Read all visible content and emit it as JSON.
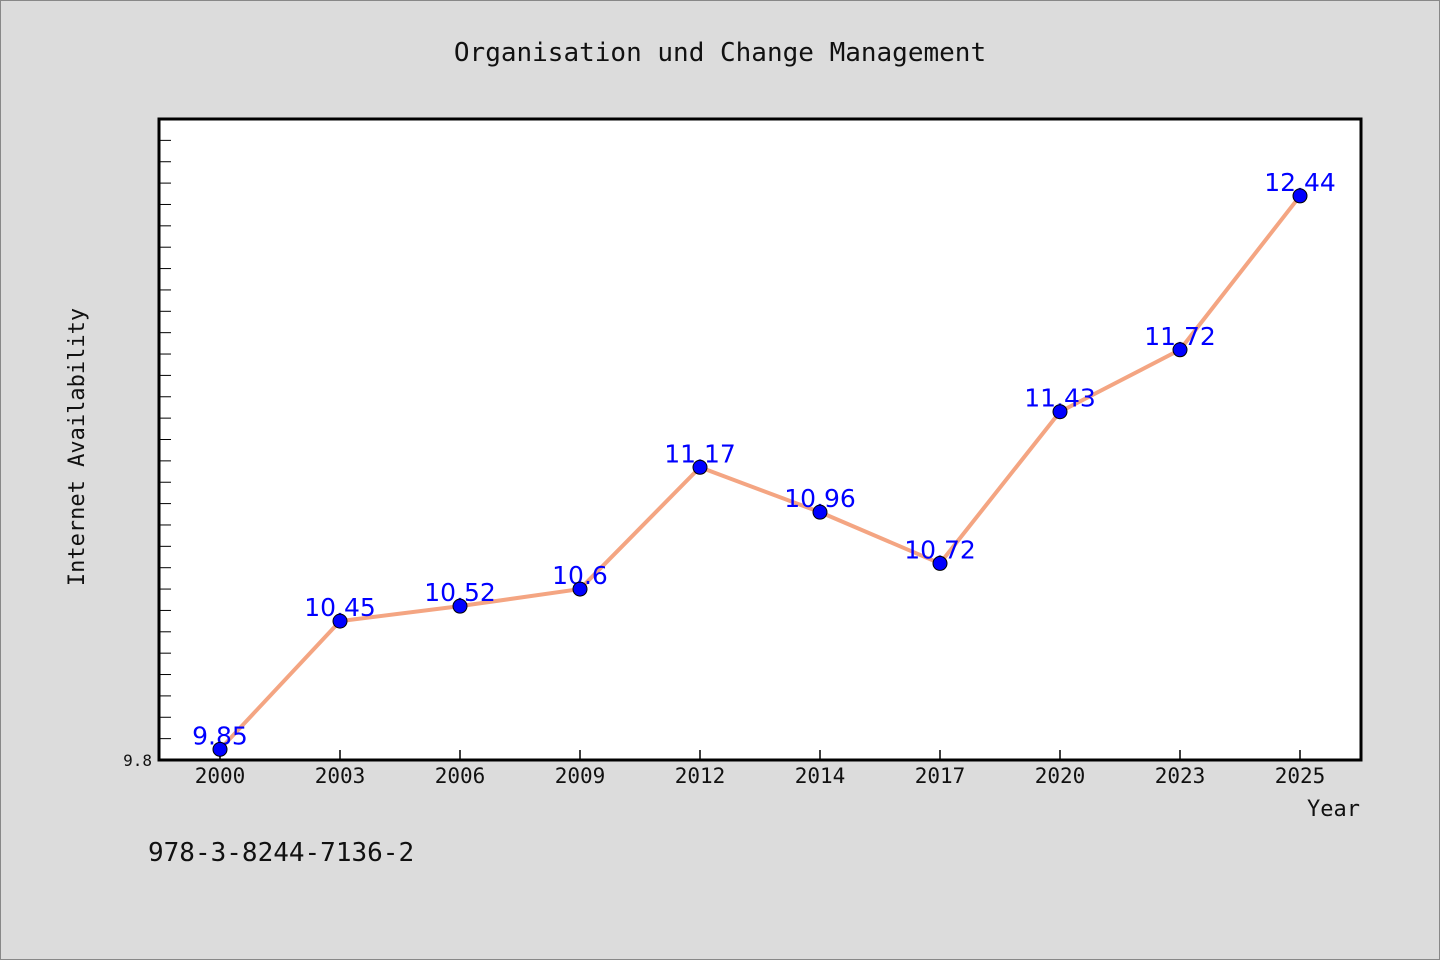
{
  "isbn": "978-3-8244-7136-2",
  "colors": {
    "background": "#dcdcdc",
    "plot_background": "#ffffff",
    "line": "#f4a582",
    "marker": "#0000ff",
    "data_label": "#0000ff"
  },
  "chart_data": {
    "type": "line",
    "title": "Organisation und Change Management",
    "xlabel": "Year",
    "ylabel": "Internet Availability",
    "categories": [
      "2000",
      "2003",
      "2006",
      "2009",
      "2012",
      "2014",
      "2017",
      "2020",
      "2023",
      "2025"
    ],
    "series": [
      {
        "values": [
          9.85,
          10.45,
          10.52,
          10.6,
          11.17,
          10.96,
          10.72,
          11.43,
          11.72,
          12.44
        ],
        "data_labels": [
          "9.85",
          "10.45",
          "10.52",
          "10.6",
          "11.17",
          "10.96",
          "10.72",
          "11.43",
          "11.72",
          "12.44"
        ]
      }
    ],
    "ylim": [
      9.8,
      12.8
    ],
    "ytick_labels": [
      "9.8"
    ],
    "grid": false,
    "legend": "none"
  }
}
